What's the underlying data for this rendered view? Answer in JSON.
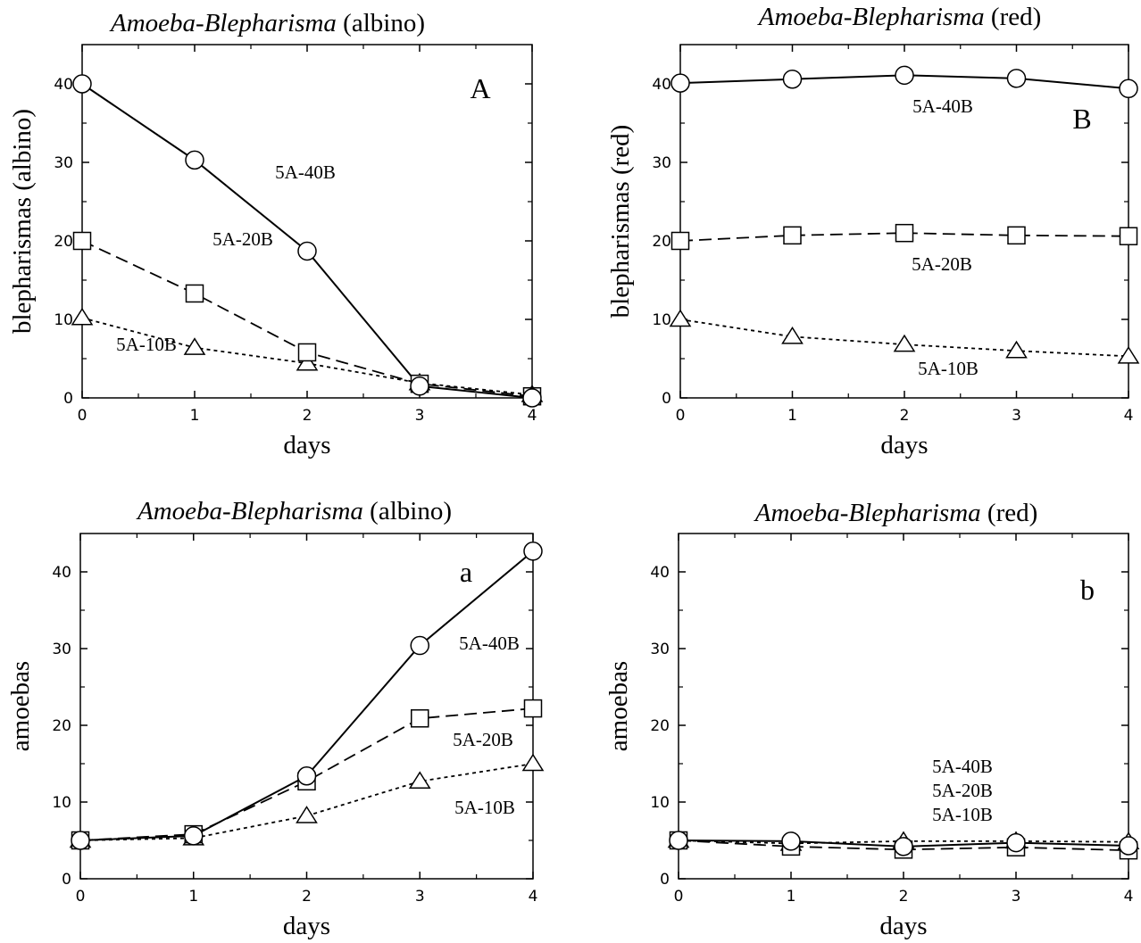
{
  "figure": {
    "xlabel": "days",
    "panels": [
      {
        "letter": "A",
        "title_italic": "Amoeba-Blepharisma",
        "title_rest": "(albino)",
        "ylabel": "blepharismas (albino)",
        "xlim": [
          0,
          4
        ],
        "ylim": [
          0,
          45
        ],
        "xticks": [
          0,
          1,
          2,
          3,
          4
        ],
        "yticks": [
          0,
          10,
          20,
          30,
          40
        ],
        "series_labels": [
          "5A-40B",
          "5A-20B",
          "5A-10B"
        ]
      },
      {
        "letter": "B",
        "title_italic": "Amoeba-Blepharisma",
        "title_rest": "(red)",
        "ylabel": "blepharismas (red)",
        "xlim": [
          0,
          4
        ],
        "ylim": [
          0,
          45
        ],
        "xticks": [
          0,
          1,
          2,
          3,
          4
        ],
        "yticks": [
          0,
          10,
          20,
          30,
          40
        ],
        "series_labels": [
          "5A-40B",
          "5A-20B",
          "5A-10B"
        ]
      },
      {
        "letter": "a",
        "title_italic": "Amoeba-Blepharisma",
        "title_rest": "(albino)",
        "ylabel": "amoebas",
        "xlim": [
          0,
          4
        ],
        "ylim": [
          0,
          45
        ],
        "xticks": [
          0,
          1,
          2,
          3,
          4
        ],
        "yticks": [
          0,
          10,
          20,
          30,
          40
        ],
        "series_labels": [
          "5A-40B",
          "5A-20B",
          "5A-10B"
        ]
      },
      {
        "letter": "b",
        "title_italic": "Amoeba-Blepharisma",
        "title_rest": "(red)",
        "ylabel": "amoebas",
        "xlim": [
          0,
          4
        ],
        "ylim": [
          0,
          45
        ],
        "xticks": [
          0,
          1,
          2,
          3,
          4
        ],
        "yticks": [
          0,
          10,
          20,
          30,
          40
        ],
        "series_labels": [
          "5A-40B",
          "5A-20B",
          "5A-10B"
        ]
      }
    ]
  },
  "chart_data": [
    {
      "type": "line",
      "panel": "A",
      "title": "Amoeba-Blepharisma (albino)",
      "xlabel": "days",
      "ylabel": "blepharismas (albino)",
      "xlim": [
        0,
        4
      ],
      "ylim": [
        0,
        45
      ],
      "x": [
        0,
        1,
        2,
        3,
        4
      ],
      "series": [
        {
          "name": "5A-40B",
          "marker": "circle",
          "line": "solid",
          "values": [
            40,
            30.3,
            18.7,
            1.5,
            0
          ]
        },
        {
          "name": "5A-20B",
          "marker": "square",
          "line": "dashed",
          "values": [
            20,
            13.3,
            5.8,
            1.8,
            0.2
          ]
        },
        {
          "name": "5A-10B",
          "marker": "triangle",
          "line": "dotted",
          "values": [
            10.2,
            6.4,
            4.4,
            1.9,
            0.4
          ]
        }
      ]
    },
    {
      "type": "line",
      "panel": "B",
      "title": "Amoeba-Blepharisma (red)",
      "xlabel": "days",
      "ylabel": "blepharismas (red)",
      "xlim": [
        0,
        4
      ],
      "ylim": [
        0,
        45
      ],
      "x": [
        0,
        1,
        2,
        3,
        4
      ],
      "series": [
        {
          "name": "5A-40B",
          "marker": "circle",
          "line": "solid",
          "values": [
            40.1,
            40.6,
            41.1,
            40.7,
            39.4
          ]
        },
        {
          "name": "5A-20B",
          "marker": "square",
          "line": "dashed",
          "values": [
            20,
            20.7,
            21,
            20.7,
            20.6
          ]
        },
        {
          "name": "5A-10B",
          "marker": "triangle",
          "line": "dotted",
          "values": [
            10,
            7.8,
            6.8,
            6,
            5.3
          ]
        }
      ]
    },
    {
      "type": "line",
      "panel": "a",
      "title": "Amoeba-Blepharisma (albino)",
      "xlabel": "days",
      "ylabel": "amoebas",
      "xlim": [
        0,
        4
      ],
      "ylim": [
        0,
        45
      ],
      "x": [
        0,
        1,
        2,
        3,
        4
      ],
      "series": [
        {
          "name": "5A-40B",
          "marker": "circle",
          "line": "solid",
          "values": [
            5,
            5.6,
            13.4,
            30.4,
            42.7
          ]
        },
        {
          "name": "5A-20B",
          "marker": "square",
          "line": "dashed",
          "values": [
            5,
            5.8,
            12.7,
            20.9,
            22.2
          ]
        },
        {
          "name": "5A-10B",
          "marker": "triangle",
          "line": "dotted",
          "values": [
            5,
            5.3,
            8.2,
            12.7,
            15
          ]
        }
      ]
    },
    {
      "type": "line",
      "panel": "b",
      "title": "Amoeba-Blepharisma (red)",
      "xlabel": "days",
      "ylabel": "amoebas",
      "xlim": [
        0,
        4
      ],
      "ylim": [
        0,
        45
      ],
      "x": [
        0,
        1,
        2,
        3,
        4
      ],
      "series": [
        {
          "name": "5A-40B",
          "marker": "circle",
          "line": "solid",
          "values": [
            5,
            4.9,
            4.2,
            4.7,
            4.3
          ]
        },
        {
          "name": "5A-20B",
          "marker": "square",
          "line": "dashed",
          "values": [
            5,
            4.2,
            3.8,
            4.1,
            3.7
          ]
        },
        {
          "name": "5A-10B",
          "marker": "triangle",
          "line": "dotted",
          "values": [
            5,
            4.6,
            4.9,
            4.9,
            4.8
          ]
        }
      ]
    }
  ]
}
